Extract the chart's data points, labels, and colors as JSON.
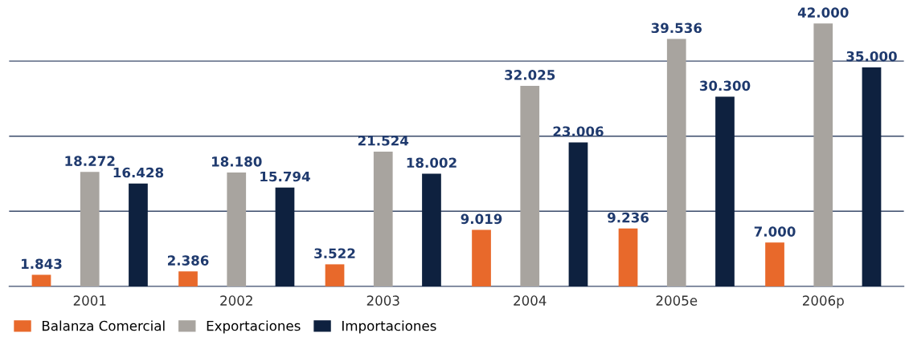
{
  "chart_data": {
    "type": "bar",
    "categories": [
      "2001",
      "2002",
      "2003",
      "2004",
      "2005e",
      "2006p"
    ],
    "series": [
      {
        "name": "Balanza Comercial",
        "color": "#e8692b",
        "values": [
          1843,
          2386,
          3522,
          9019,
          9236,
          7000
        ],
        "value_labels": [
          "1.843",
          "2.386",
          "3.522",
          "9.019",
          "9.236",
          "7.000"
        ]
      },
      {
        "name": "Exportaciones",
        "color": "#a8a49f",
        "values": [
          18272,
          18180,
          21524,
          32025,
          39536,
          42000
        ],
        "value_labels": [
          "18.272",
          "18.180",
          "21.524",
          "32.025",
          "39.536",
          "42.000"
        ]
      },
      {
        "name": "Importaciones",
        "color": "#0e213f",
        "values": [
          16428,
          15794,
          18002,
          23006,
          30300,
          35000
        ],
        "value_labels": [
          "16.428",
          "15.794",
          "18.002",
          "23.006",
          "30.300",
          "35.000"
        ]
      }
    ],
    "ref_lines": [
      {
        "axis": "y",
        "value": 12000,
        "color": "#3a4a6a"
      },
      {
        "axis": "y",
        "value": 24000,
        "color": "#3a4a6a"
      },
      {
        "axis": "y",
        "value": 36000,
        "color": "#3a4a6a"
      }
    ],
    "legend": "bottom left",
    "tick_labels": "x"
  }
}
